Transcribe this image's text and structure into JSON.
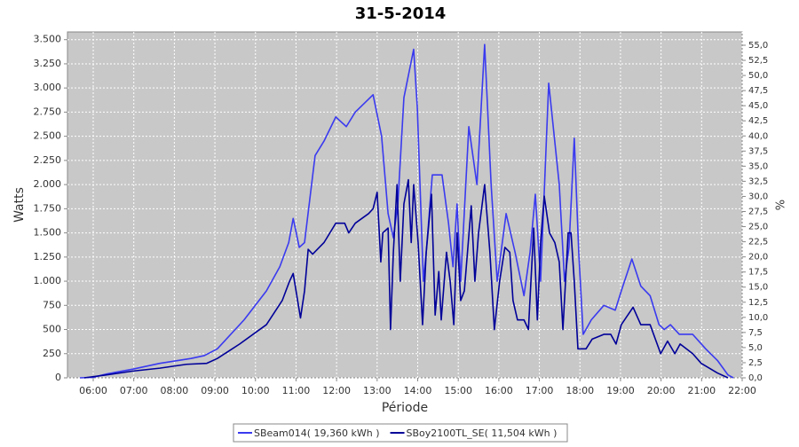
{
  "chart_data": {
    "type": "line",
    "title": "31-5-2014",
    "xlabel": "Période",
    "ylabel": "Watts",
    "y2label": "%",
    "xlim": [
      5.365,
      22
    ],
    "ylim": [
      0,
      3580
    ],
    "y2lim": [
      0,
      57.2
    ],
    "grid": true,
    "legend": "bottom",
    "xticks": [
      {
        "value": 6,
        "label": "06:00"
      },
      {
        "value": 7,
        "label": "07:00"
      },
      {
        "value": 8,
        "label": "08:00"
      },
      {
        "value": 9,
        "label": "09:00"
      },
      {
        "value": 10,
        "label": "10:00"
      },
      {
        "value": 11,
        "label": "11:00"
      },
      {
        "value": 12,
        "label": "12:00"
      },
      {
        "value": 13,
        "label": "13:00"
      },
      {
        "value": 14,
        "label": "14:00"
      },
      {
        "value": 15,
        "label": "15:00"
      },
      {
        "value": 16,
        "label": "16:00"
      },
      {
        "value": 17,
        "label": "17:00"
      },
      {
        "value": 18,
        "label": "18:00"
      },
      {
        "value": 19,
        "label": "19:00"
      },
      {
        "value": 20,
        "label": "20:00"
      },
      {
        "value": 21,
        "label": "21:00"
      },
      {
        "value": 22,
        "label": "22:00"
      }
    ],
    "yticks": [
      0,
      250,
      500,
      750,
      {
        "value": 1000,
        "label": "1.000"
      },
      {
        "value": 1250,
        "label": "1.250"
      },
      {
        "value": 1500,
        "label": "1.500"
      },
      {
        "value": 1750,
        "label": "1.750"
      },
      {
        "value": 2000,
        "label": "2.000"
      },
      {
        "value": 2250,
        "label": "2.250"
      },
      {
        "value": 2500,
        "label": "2.500"
      },
      {
        "value": 2750,
        "label": "2.750"
      },
      {
        "value": 3000,
        "label": "3.000"
      },
      {
        "value": 3250,
        "label": "3.250"
      },
      {
        "value": 3500,
        "label": "3.500"
      }
    ],
    "y2ticks": [
      {
        "value": 0,
        "label": "0,0"
      },
      {
        "value": 2.5,
        "label": "2,5"
      },
      {
        "value": 5,
        "label": "5,0"
      },
      {
        "value": 7.5,
        "label": "7,5"
      },
      {
        "value": 10,
        "label": "10,0"
      },
      {
        "value": 12.5,
        "label": "12,5"
      },
      {
        "value": 15,
        "label": "15,0"
      },
      {
        "value": 17.5,
        "label": "17,5"
      },
      {
        "value": 20,
        "label": "20,0"
      },
      {
        "value": 22.5,
        "label": "22,5"
      },
      {
        "value": 25,
        "label": "25,0"
      },
      {
        "value": 27.5,
        "label": "27,5"
      },
      {
        "value": 30,
        "label": "30,0"
      },
      {
        "value": 32.5,
        "label": "32,5"
      },
      {
        "value": 35,
        "label": "35,0"
      },
      {
        "value": 37.5,
        "label": "37,5"
      },
      {
        "value": 40,
        "label": "40,0"
      },
      {
        "value": 42.5,
        "label": "42,5"
      },
      {
        "value": 45,
        "label": "45,0"
      },
      {
        "value": 47.5,
        "label": "47,5"
      },
      {
        "value": 50,
        "label": "50,0"
      },
      {
        "value": 52.5,
        "label": "52,5"
      },
      {
        "value": 55,
        "label": "55,0"
      }
    ],
    "series": [
      {
        "name": "SBeam014( 19,360 kWh )",
        "color": "#3a3af0",
        "x": [
          5.67,
          6.0,
          6.33,
          6.98,
          7.64,
          8.41,
          8.74,
          9.06,
          9.72,
          10.27,
          10.6,
          10.82,
          10.93,
          11.08,
          11.21,
          11.47,
          11.69,
          11.98,
          12.24,
          12.46,
          12.9,
          13.11,
          13.27,
          13.4,
          13.51,
          13.66,
          13.9,
          13.99,
          14.14,
          14.21,
          14.36,
          14.6,
          14.76,
          14.87,
          14.97,
          15.06,
          15.26,
          15.46,
          15.65,
          15.81,
          15.96,
          16.18,
          16.4,
          16.62,
          16.77,
          16.9,
          17.03,
          17.23,
          17.49,
          17.62,
          17.73,
          17.86,
          17.97,
          18.08,
          18.28,
          18.59,
          18.87,
          19.02,
          19.28,
          19.5,
          19.73,
          19.95,
          20.08,
          20.23,
          20.45,
          20.78,
          21.1,
          21.39,
          21.65,
          21.78
        ],
        "values": [
          0,
          5,
          40,
          90,
          150,
          200,
          230,
          300,
          600,
          900,
          1150,
          1400,
          1650,
          1350,
          1400,
          2300,
          2450,
          2700,
          2600,
          2750,
          2930,
          2500,
          1700,
          1450,
          1800,
          2900,
          3400,
          2800,
          1000,
          1300,
          2100,
          2100,
          1600,
          1150,
          1800,
          1000,
          2600,
          2000,
          3450,
          2000,
          1000,
          1700,
          1300,
          850,
          1300,
          1900,
          1000,
          3050,
          2000,
          1000,
          1350,
          2480,
          1300,
          450,
          600,
          750,
          700,
          900,
          1230,
          950,
          850,
          550,
          500,
          550,
          450,
          450,
          300,
          180,
          30,
          0
        ]
      },
      {
        "name": "SBoy2100TL_SE( 11,504 kWh )",
        "color": "#000099",
        "x": [
          5.78,
          6.33,
          6.98,
          7.64,
          8.3,
          8.8,
          9.06,
          9.61,
          10.27,
          10.66,
          10.84,
          10.93,
          11.11,
          11.21,
          11.3,
          11.41,
          11.69,
          11.98,
          12.2,
          12.3,
          12.46,
          12.79,
          12.9,
          13.0,
          13.09,
          13.14,
          13.27,
          13.33,
          13.4,
          13.49,
          13.57,
          13.66,
          13.77,
          13.84,
          13.9,
          14.01,
          14.12,
          14.21,
          14.34,
          14.43,
          14.52,
          14.58,
          14.71,
          14.8,
          14.89,
          14.97,
          15.06,
          15.15,
          15.32,
          15.41,
          15.5,
          15.65,
          15.78,
          15.89,
          16.02,
          16.15,
          16.27,
          16.35,
          16.46,
          16.62,
          16.73,
          16.86,
          16.95,
          17.03,
          17.12,
          17.25,
          17.38,
          17.49,
          17.58,
          17.71,
          17.78,
          17.86,
          17.95,
          18.15,
          18.3,
          18.59,
          18.76,
          18.89,
          19.02,
          19.31,
          19.5,
          19.73,
          19.99,
          20.16,
          20.34,
          20.47,
          20.78,
          20.99,
          21.39,
          21.65
        ],
        "values": [
          0,
          30,
          70,
          100,
          140,
          150,
          200,
          350,
          550,
          800,
          1000,
          1080,
          620,
          900,
          1330,
          1280,
          1400,
          1600,
          1600,
          1500,
          1600,
          1700,
          1750,
          1920,
          1200,
          1500,
          1550,
          500,
          1300,
          2000,
          1000,
          1800,
          2050,
          1400,
          2000,
          1400,
          550,
          1300,
          1900,
          650,
          1100,
          600,
          1300,
          1000,
          550,
          1500,
          800,
          900,
          1780,
          1000,
          1500,
          2000,
          1300,
          500,
          1000,
          1350,
          1300,
          800,
          600,
          600,
          500,
          1550,
          600,
          1400,
          1880,
          1500,
          1400,
          1200,
          500,
          1500,
          1500,
          1000,
          300,
          300,
          400,
          450,
          450,
          350,
          550,
          730,
          550,
          550,
          250,
          380,
          250,
          350,
          250,
          150,
          50,
          0
        ]
      }
    ]
  }
}
